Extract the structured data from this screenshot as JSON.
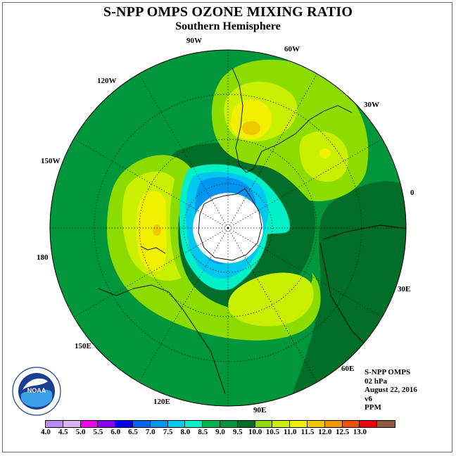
{
  "title": "S-NPP OMPS OZONE MIXING RATIO",
  "subtitle": "Southern Hemisphere",
  "longitude_labels": [
    "90W",
    "60W",
    "30W",
    "0",
    "30E",
    "60E",
    "90E",
    "120E",
    "150E",
    "180",
    "150W",
    "120W"
  ],
  "info": {
    "instrument": "S-NPP OMPS",
    "level": "02 hPa",
    "date": "August 22, 2016",
    "version": "v6",
    "units": "PPM"
  },
  "logo_text": "NOAA",
  "colorbar": {
    "ticks": [
      "4.0",
      "4.5",
      "5.0",
      "5.5",
      "6.0",
      "6.5",
      "7.0",
      "7.5",
      "8.0",
      "8.5",
      "9.0",
      "9.5",
      "10.0",
      "10.5",
      "11.0",
      "11.5",
      "12.0",
      "12.5",
      "13.0"
    ],
    "colors": [
      "#b88cf0",
      "#d8b4f0",
      "#f000f0",
      "#8c00f0",
      "#0000f0",
      "#0064f0",
      "#0096f0",
      "#00c8f0",
      "#00f0c8",
      "#00b450",
      "#00963c",
      "#006e28",
      "#8cdc00",
      "#c8f000",
      "#f0f000",
      "#f0c800",
      "#f09600",
      "#f05000",
      "#f00000",
      "#8c5a3c"
    ]
  },
  "colors": {
    "background_field": "#00963c",
    "dark_ring": "#006e28",
    "band_light": "#8cdc00",
    "band_yellow": "#c8f000",
    "max_yellow": "#f0f000",
    "peak_orange": "#f0c800",
    "low_cyan": "#00f0c8",
    "low_blue": "#00c8f0",
    "lowest_blue": "#0096f0"
  }
}
